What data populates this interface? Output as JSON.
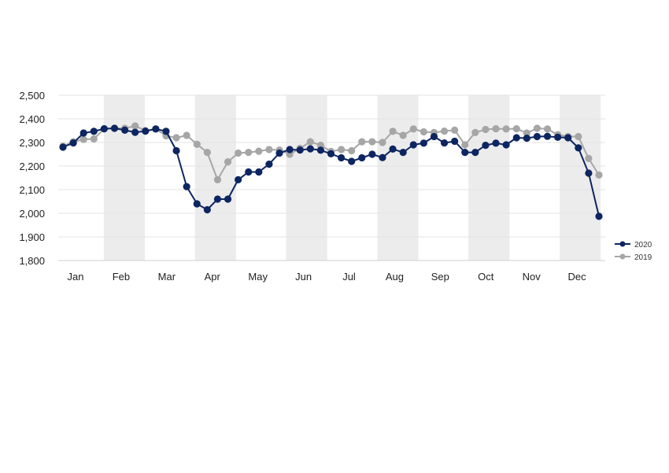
{
  "chart_data": {
    "type": "line",
    "title": "",
    "xlabel": "",
    "ylabel": "",
    "ylim": [
      1800,
      2500
    ],
    "yticks": [
      "1,800",
      "1,900",
      "2,000",
      "2,100",
      "2,200",
      "2,300",
      "2,400",
      "2,500"
    ],
    "ytick_values": [
      1800,
      1900,
      2000,
      2100,
      2200,
      2300,
      2400,
      2500
    ],
    "months": [
      "Jan",
      "Feb",
      "Mar",
      "Apr",
      "May",
      "Jun",
      "Jul",
      "Aug",
      "Sep",
      "Oct",
      "Nov",
      "Dec"
    ],
    "x_unit": "week of year",
    "x_range": [
      1,
      53
    ],
    "shaded_months": [
      "Feb",
      "Apr",
      "Jun",
      "Aug",
      "Oct",
      "Dec"
    ],
    "grid": true,
    "legend_position": "bottom-right",
    "series": [
      {
        "name": "2020",
        "color": "#0d2560",
        "values": [
          2280,
          2298,
          2340,
          2347,
          2358,
          2360,
          2352,
          2343,
          2348,
          2357,
          2347,
          2265,
          2113,
          2040,
          2015,
          2060,
          2060,
          2142,
          2175,
          2175,
          2208,
          2255,
          2270,
          2268,
          2273,
          2267,
          2252,
          2235,
          2220,
          2235,
          2250,
          2236,
          2272,
          2258,
          2290,
          2297,
          2325,
          2298,
          2305,
          2258,
          2258,
          2288,
          2297,
          2290,
          2320,
          2318,
          2325,
          2326,
          2322,
          2320,
          2277,
          2170,
          1987
        ]
      },
      {
        "name": "2019",
        "color": "#a6a6a6",
        "values": [
          2284,
          2303,
          2313,
          2315,
          2358,
          2360,
          2360,
          2370,
          2350,
          2357,
          2328,
          2320,
          2330,
          2292,
          2258,
          2142,
          2218,
          2255,
          2258,
          2263,
          2270,
          2268,
          2250,
          2275,
          2303,
          2288,
          2262,
          2270,
          2265,
          2303,
          2303,
          2300,
          2347,
          2330,
          2357,
          2345,
          2342,
          2348,
          2352,
          2290,
          2342,
          2355,
          2358,
          2357,
          2358,
          2340,
          2360,
          2357,
          2333,
          2325,
          2325,
          2232,
          2162
        ]
      }
    ]
  }
}
